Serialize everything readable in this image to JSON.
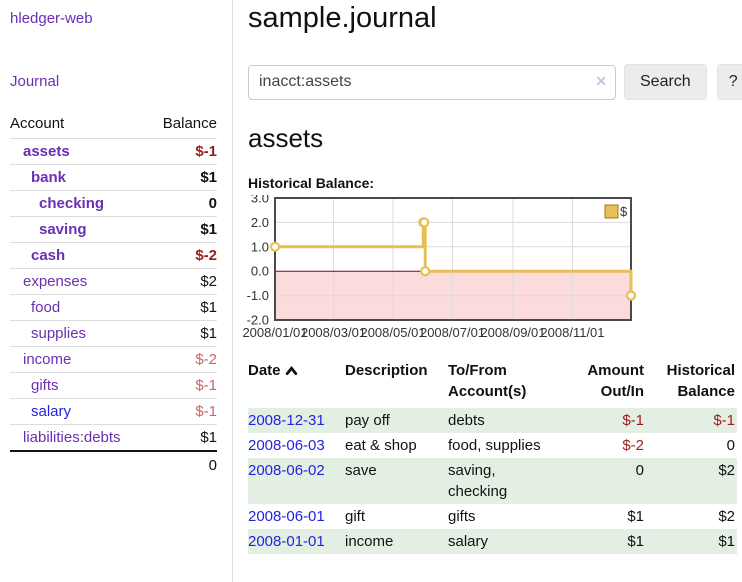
{
  "app": {
    "brand": "hledger-web"
  },
  "sidebar": {
    "journal_link": "Journal",
    "accounts": {
      "headers": {
        "account": "Account",
        "balance": "Balance"
      },
      "rows": [
        {
          "account": "assets",
          "balance": "$-1",
          "depth": 1,
          "in_filter": true,
          "amount_style": "neg"
        },
        {
          "account": "bank",
          "balance": "$1",
          "depth": 2,
          "in_filter": true
        },
        {
          "account": "checking",
          "balance": "0",
          "depth": 3,
          "in_filter": true
        },
        {
          "account": "saving",
          "balance": "$1",
          "depth": 3,
          "in_filter": true
        },
        {
          "account": "cash",
          "balance": "$-2",
          "depth": 2,
          "in_filter": true,
          "amount_style": "neg"
        },
        {
          "account": "expenses",
          "balance": "$2",
          "depth": 1
        },
        {
          "account": "food",
          "balance": "$1",
          "depth": 2
        },
        {
          "account": "supplies",
          "balance": "$1",
          "depth": 2
        },
        {
          "account": "income",
          "balance": "$-2",
          "depth": 1,
          "amount_style": "negsoft"
        },
        {
          "account": "gifts",
          "balance": "$-1",
          "depth": 2,
          "amount_style": "negsoft"
        },
        {
          "account": "salary",
          "balance": "$-1",
          "depth": 2,
          "amount_style": "negsoft",
          "blue_link": true
        },
        {
          "account": "liabilities:debts",
          "balance": "$1",
          "depth": 1
        }
      ],
      "total": "0"
    }
  },
  "main": {
    "title": "sample.journal",
    "search": {
      "value": "inacct:assets",
      "clear_label": "✕",
      "button_label": "Search",
      "help_label": "?"
    },
    "account_heading": "assets",
    "chart_label": "Historical Balance:"
  },
  "chart_data": {
    "type": "line",
    "step": true,
    "title": "Historical Balance:",
    "x_domain": [
      "2008-01-01",
      "2008-12-31"
    ],
    "ylim": [
      -2,
      3
    ],
    "y_ticks": [
      3.0,
      2.0,
      1.0,
      0.0,
      -1.0,
      -2.0
    ],
    "x_ticks": [
      {
        "date": "2008-01-01",
        "label": "2008/01/01"
      },
      {
        "date": "2008-03-01",
        "label": "2008/03/01"
      },
      {
        "date": "2008-05-01",
        "label": "2008/05/01"
      },
      {
        "date": "2008-07-01",
        "label": "2008/07/01"
      },
      {
        "date": "2008-09-01",
        "label": "2008/09/01"
      },
      {
        "date": "2008-11-01",
        "label": "2008/11/01"
      }
    ],
    "series": [
      {
        "name": "$",
        "points": [
          [
            "2008-01-01",
            1
          ],
          [
            "2008-06-01",
            2
          ],
          [
            "2008-06-02",
            2
          ],
          [
            "2008-06-03",
            0
          ],
          [
            "2008-12-31",
            -1
          ]
        ]
      }
    ],
    "legend_position": "top-right",
    "colors": {
      "line": "#e7c055",
      "marker_fill": "#ffffff",
      "negative_region": "#fbdbdb",
      "zero_line": "#7a0c0c",
      "grid": "#dcdcdc",
      "border": "#4a4a4a",
      "legend_border": "#9c7d1d",
      "tick_text": "#333333"
    }
  },
  "register": {
    "headers": {
      "date": "Date",
      "description": "Description",
      "accounts": "To/From Account(s)",
      "amount": "Amount Out/In",
      "balance": "Historical Balance"
    },
    "sort": {
      "column": "date",
      "indicator": "up"
    },
    "rows": [
      {
        "date": "2008-12-31",
        "description": "pay off",
        "accounts": "debts",
        "amount": "$-1",
        "balance": "$-1",
        "shaded": true,
        "amount_negative": true,
        "balance_negative": true
      },
      {
        "date": "2008-06-03",
        "description": "eat & shop",
        "accounts": "food, supplies",
        "amount": "$-2",
        "balance": "0",
        "amount_negative": true
      },
      {
        "date": "2008-06-02",
        "description": "save",
        "accounts": "saving, checking",
        "amount": "0",
        "balance": "$2",
        "shaded": true
      },
      {
        "date": "2008-06-01",
        "description": "gift",
        "accounts": "gifts",
        "amount": "$1",
        "balance": "$2"
      },
      {
        "date": "2008-01-01",
        "description": "income",
        "accounts": "salary",
        "amount": "$1",
        "balance": "$1",
        "shaded": true
      }
    ]
  }
}
